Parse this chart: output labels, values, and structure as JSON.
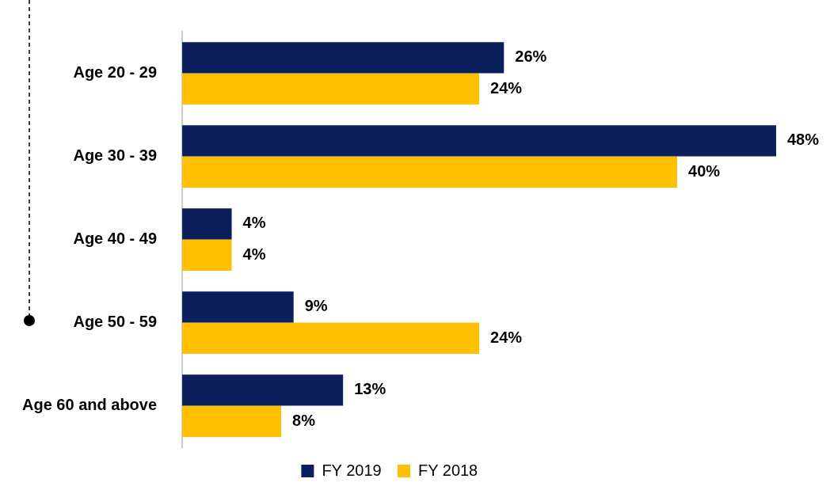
{
  "chart_data": {
    "type": "bar",
    "orientation": "horizontal",
    "categories": [
      "Age 20 - 29",
      "Age 30 - 39",
      "Age 40 - 49",
      "Age 50 - 59",
      "Age 60 and above"
    ],
    "series": [
      {
        "name": "FY 2019",
        "color": "#0a1f5c",
        "values": [
          26,
          48,
          4,
          9,
          13
        ],
        "value_labels": [
          "26%",
          "48%",
          "4%",
          "9%",
          "13%"
        ]
      },
      {
        "name": "FY 2018",
        "color": "#ffc000",
        "values": [
          24,
          40,
          4,
          24,
          8
        ],
        "value_labels": [
          "24%",
          "40%",
          "4%",
          "24%",
          "8%"
        ]
      }
    ],
    "legend": "bottom"
  }
}
